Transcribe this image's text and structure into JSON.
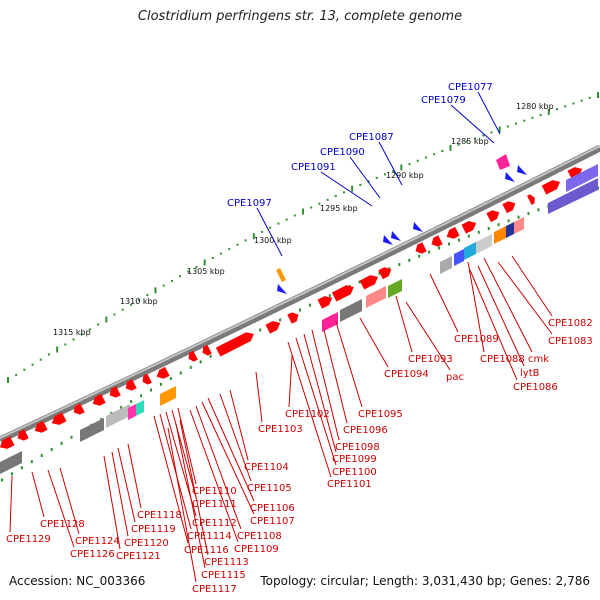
{
  "title": "Clostridium perfringens str. 13, complete genome",
  "footer": {
    "accession": "Accession: NC_003366",
    "summary": "Topology: circular; Length: 3,031,430 bp; Genes: 2,786"
  },
  "colors": {
    "backbone": "#8a8a8a",
    "gene": "#ff0000",
    "scale_tick": "#2f8f2f",
    "ruler_label": "#111111",
    "label_blue": "#0000cc",
    "label_red": "#cc0000"
  },
  "ruler_labels": [
    "1280 kbp",
    "1285 kbp",
    "1290 kbp",
    "1295 kbp",
    "1300 kbp",
    "1305 kbp",
    "1310 kbp",
    "1315 kbp"
  ],
  "top_labels": [
    "CPE1077",
    "CPE1079",
    "CPE1087",
    "CPE1090",
    "CPE1091",
    "CPE1097"
  ],
  "right_labels": [
    "CPE1082",
    "CPE1083",
    "CPE1089",
    "CPE1088",
    "cmk",
    "lytB",
    "CPE1086",
    "CPE1093",
    "pac",
    "CPE1094",
    "CPE1095",
    "CPE1096",
    "CPE1102",
    "CPE1103",
    "CPE1098",
    "CPE1099",
    "CPE1100",
    "CPE1101",
    "CPE1104",
    "CPE1105",
    "CPE1106",
    "CPE1107",
    "CPE1108",
    "CPE1109",
    "CPE1110",
    "CPE1111",
    "CPE1112",
    "CPE1114",
    "CPE1116",
    "CPE1113",
    "CPE1115",
    "CPE1117",
    "CPE1118",
    "CPE1119",
    "CPE1120",
    "CPE1121",
    "CPE1124",
    "CPE1126",
    "CPE1128",
    "CPE1129"
  ]
}
